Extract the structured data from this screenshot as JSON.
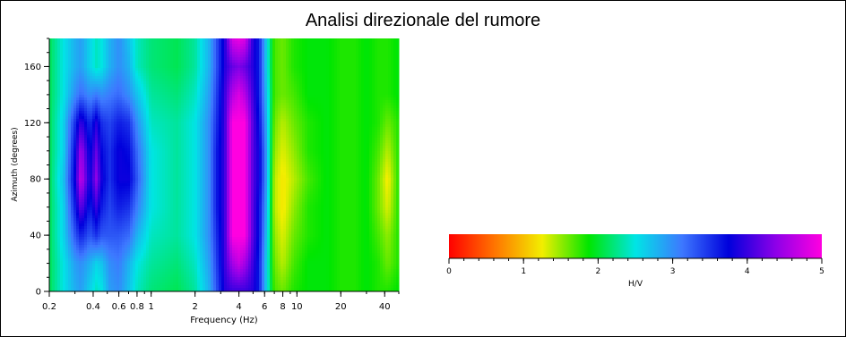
{
  "title": "Analisi direzionale del rumore",
  "chart_data": {
    "type": "heatmap",
    "title": "Analisi direzionale del rumore",
    "xlabel": "Frequency (Hz)",
    "ylabel": "Azimuth (degrees)",
    "x_scale": "log",
    "xlim": [
      0.2,
      50
    ],
    "ylim": [
      0,
      180
    ],
    "x_ticks": [
      {
        "value": 0.2,
        "label": "0.2"
      },
      {
        "value": 0.4,
        "label": "0.4"
      },
      {
        "value": 0.6,
        "label": "0.6"
      },
      {
        "value": 0.8,
        "label": "0.8"
      },
      {
        "value": 1,
        "label": "1"
      },
      {
        "value": 2,
        "label": "2"
      },
      {
        "value": 4,
        "label": "4"
      },
      {
        "value": 6,
        "label": "6"
      },
      {
        "value": 8,
        "label": "8"
      },
      {
        "value": 10,
        "label": "10"
      },
      {
        "value": 20,
        "label": "20"
      },
      {
        "value": 40,
        "label": "40"
      }
    ],
    "y_ticks": [
      {
        "value": 0,
        "label": "0"
      },
      {
        "value": 40,
        "label": "40"
      },
      {
        "value": 80,
        "label": "80"
      },
      {
        "value": 120,
        "label": "120"
      },
      {
        "value": 160,
        "label": "160"
      }
    ],
    "profile_frequencies": [
      0.2,
      0.25,
      0.3,
      0.33,
      0.38,
      0.42,
      0.46,
      0.52,
      0.6,
      0.7,
      0.8,
      1.0,
      1.5,
      2.0,
      2.5,
      2.8,
      3.2,
      3.6,
      4.0,
      4.4,
      5.0,
      5.5,
      6.2,
      7.0,
      8.0,
      9.5,
      12,
      16,
      20,
      25,
      30,
      36,
      42,
      50
    ],
    "hv_by_azimuth": {
      "azimuths": [
        0,
        20,
        40,
        60,
        80,
        100,
        120,
        140,
        160,
        180
      ],
      "rows": [
        [
          2.1,
          2.5,
          2.8,
          2.9,
          2.6,
          2.4,
          2.5,
          2.9,
          3.0,
          2.7,
          2.4,
          2.2,
          2.1,
          2.3,
          2.8,
          3.3,
          3.9,
          4.0,
          4.0,
          4.0,
          3.9,
          3.6,
          2.6,
          1.7,
          1.6,
          1.8,
          1.9,
          1.9,
          1.8,
          1.8,
          1.9,
          1.8,
          1.8,
          1.9
        ],
        [
          2.1,
          2.5,
          2.9,
          3.0,
          2.8,
          2.6,
          2.7,
          3.0,
          3.1,
          2.8,
          2.5,
          2.3,
          2.2,
          2.4,
          2.9,
          3.4,
          4.0,
          4.5,
          4.7,
          4.5,
          4.0,
          3.6,
          2.6,
          1.6,
          1.4,
          1.7,
          1.9,
          1.9,
          1.8,
          1.8,
          1.9,
          1.8,
          1.6,
          1.8
        ],
        [
          2.1,
          2.6,
          3.3,
          3.6,
          3.3,
          3.5,
          3.3,
          3.3,
          3.3,
          3.2,
          2.8,
          2.4,
          2.3,
          2.5,
          3.0,
          3.5,
          4.0,
          5.0,
          5.0,
          5.0,
          4.1,
          3.7,
          2.7,
          1.5,
          1.3,
          1.6,
          1.8,
          1.9,
          1.8,
          1.8,
          1.9,
          1.7,
          1.5,
          1.8
        ],
        [
          2.1,
          2.6,
          3.6,
          4.2,
          3.6,
          4.0,
          3.6,
          3.4,
          3.6,
          3.5,
          3.1,
          2.5,
          2.3,
          2.5,
          3.0,
          3.6,
          4.0,
          5.0,
          5.0,
          5.0,
          4.1,
          3.7,
          2.8,
          1.4,
          1.2,
          1.5,
          1.8,
          1.9,
          1.8,
          1.8,
          1.9,
          1.6,
          1.3,
          1.8
        ],
        [
          2.1,
          2.7,
          3.8,
          4.7,
          3.8,
          4.4,
          3.8,
          3.5,
          3.8,
          3.8,
          3.3,
          2.5,
          2.3,
          2.5,
          3.0,
          3.6,
          4.0,
          5.0,
          5.0,
          5.0,
          4.1,
          3.8,
          2.9,
          1.4,
          1.2,
          1.4,
          1.7,
          1.9,
          1.8,
          1.8,
          1.9,
          1.6,
          1.2,
          1.8
        ],
        [
          2.1,
          2.6,
          3.7,
          4.5,
          3.7,
          4.2,
          3.7,
          3.5,
          3.8,
          3.7,
          3.2,
          2.5,
          2.3,
          2.5,
          3.0,
          3.6,
          4.0,
          5.0,
          5.0,
          5.0,
          4.1,
          3.8,
          2.9,
          1.5,
          1.3,
          1.5,
          1.8,
          1.9,
          1.8,
          1.8,
          1.9,
          1.7,
          1.4,
          1.8
        ],
        [
          2.1,
          2.6,
          3.5,
          4.0,
          3.5,
          3.9,
          3.5,
          3.4,
          3.6,
          3.5,
          3.0,
          2.4,
          2.3,
          2.5,
          3.0,
          3.5,
          4.0,
          5.0,
          5.0,
          5.0,
          4.1,
          3.7,
          2.8,
          1.6,
          1.4,
          1.6,
          1.8,
          1.9,
          1.8,
          1.8,
          1.9,
          1.8,
          1.6,
          1.8
        ],
        [
          2.1,
          2.5,
          3.0,
          3.2,
          3.0,
          3.1,
          3.0,
          3.1,
          3.2,
          3.0,
          2.7,
          2.3,
          2.2,
          2.4,
          2.9,
          3.4,
          4.0,
          4.6,
          4.8,
          4.6,
          4.0,
          3.6,
          2.7,
          1.7,
          1.6,
          1.7,
          1.9,
          1.9,
          1.8,
          1.8,
          1.9,
          1.8,
          1.8,
          1.9
        ],
        [
          2.1,
          2.5,
          2.8,
          2.9,
          2.6,
          2.4,
          2.5,
          2.8,
          3.0,
          2.8,
          2.4,
          2.2,
          2.1,
          2.3,
          2.8,
          3.3,
          3.9,
          4.2,
          4.3,
          4.2,
          3.9,
          3.6,
          2.6,
          1.7,
          1.6,
          1.8,
          1.9,
          1.9,
          1.8,
          1.8,
          1.9,
          1.8,
          1.8,
          1.9
        ],
        [
          2.1,
          2.5,
          2.8,
          2.9,
          2.6,
          2.4,
          2.5,
          2.8,
          3.0,
          2.7,
          2.4,
          2.2,
          2.1,
          2.3,
          2.8,
          3.3,
          3.9,
          4.8,
          4.9,
          4.8,
          3.9,
          3.6,
          2.6,
          1.7,
          1.6,
          1.8,
          1.9,
          1.9,
          1.8,
          1.8,
          1.9,
          1.8,
          1.8,
          1.9
        ]
      ]
    },
    "colorbar": {
      "label": "H/V",
      "range": [
        0,
        5
      ],
      "tick_values": [
        0,
        1,
        2,
        3,
        4,
        5
      ],
      "tick_labels": [
        "0",
        "1",
        "2",
        "3",
        "4",
        "5"
      ],
      "colors": [
        "#ff0000",
        "#ff7700",
        "#f2ee00",
        "#00e600",
        "#00e5e5",
        "#3d78ff",
        "#0000dc",
        "#8c00e8",
        "#ff00e0"
      ]
    }
  }
}
